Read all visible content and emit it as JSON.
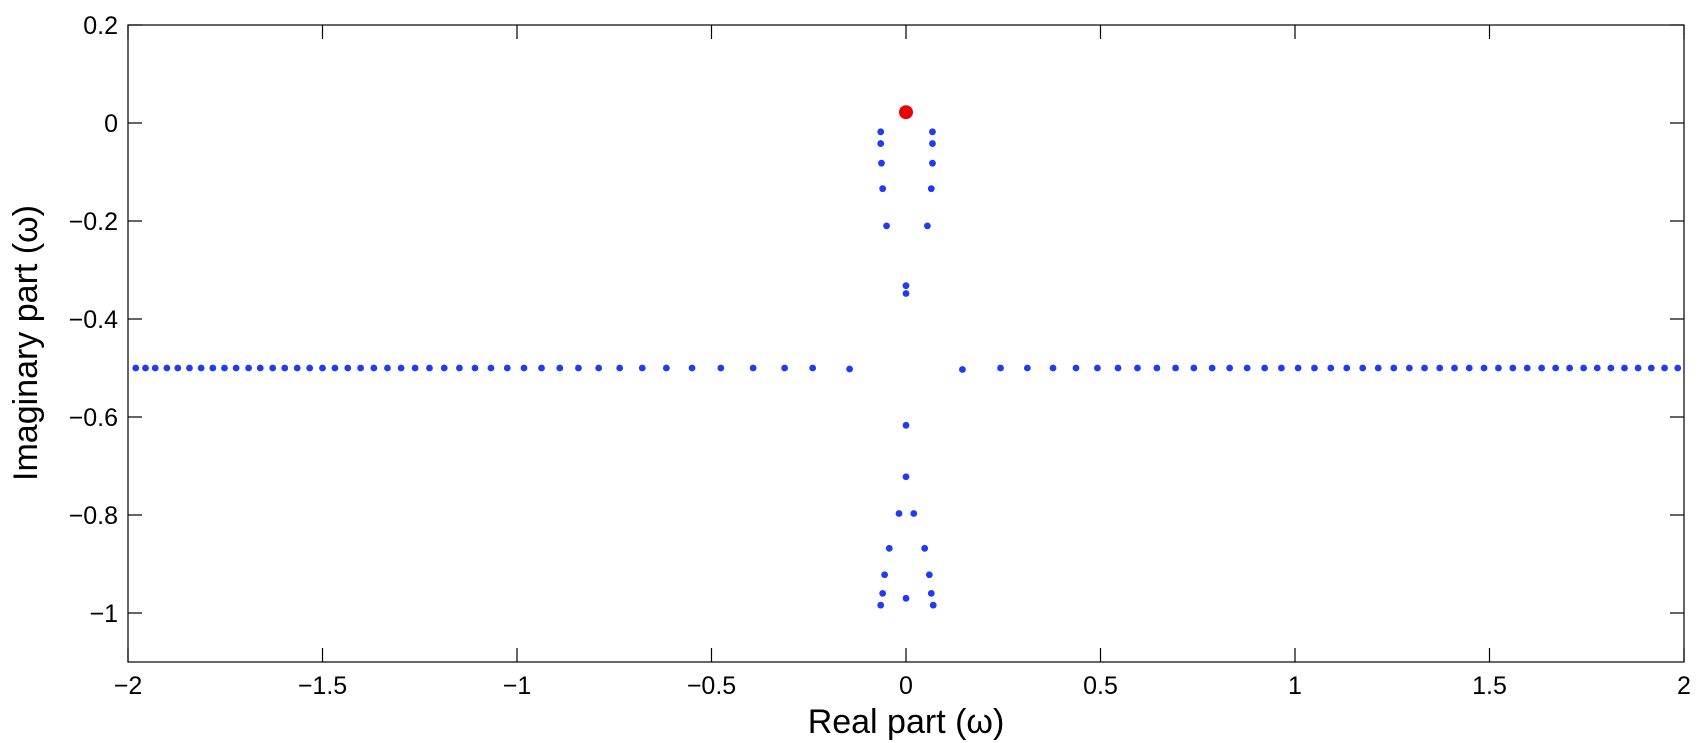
{
  "chart_data": {
    "type": "scatter",
    "xlabel": "Real  part (ω)",
    "ylabel": "Imaginary part (ω)",
    "xlim": [
      -2,
      2
    ],
    "ylim": [
      -1.1,
      0.2
    ],
    "xticks": [
      -2,
      -1.5,
      -1,
      -0.5,
      0,
      0.5,
      1,
      1.5,
      2
    ],
    "xtick_labels": [
      "−2",
      "−1.5",
      "−1",
      "−0.5",
      "0",
      "0.5",
      "1",
      "1.5",
      "2"
    ],
    "yticks": [
      0.2,
      0,
      -0.2,
      -0.4,
      -0.6,
      -0.8,
      -1
    ],
    "ytick_labels": [
      "0.2",
      "0",
      "−0.2",
      "−0.4",
      "−0.6",
      "−0.8",
      "−1"
    ],
    "grid": false,
    "series": [
      {
        "color": "#1f3cf0",
        "marker_size": "small",
        "points": [
          [
            -1.98,
            -0.5
          ],
          [
            -1.955,
            -0.5
          ],
          [
            -1.93,
            -0.5
          ],
          [
            -1.9,
            -0.5
          ],
          [
            -1.872,
            -0.5
          ],
          [
            -1.842,
            -0.5
          ],
          [
            -1.812,
            -0.5
          ],
          [
            -1.782,
            -0.5
          ],
          [
            -1.752,
            -0.5
          ],
          [
            -1.722,
            -0.5
          ],
          [
            -1.69,
            -0.5
          ],
          [
            -1.66,
            -0.5
          ],
          [
            -1.628,
            -0.5
          ],
          [
            -1.597,
            -0.5
          ],
          [
            -1.565,
            -0.5
          ],
          [
            -1.533,
            -0.5
          ],
          [
            -1.5,
            -0.5
          ],
          [
            -1.468,
            -0.5
          ],
          [
            -1.435,
            -0.5
          ],
          [
            -1.402,
            -0.5
          ],
          [
            -1.368,
            -0.5
          ],
          [
            -1.333,
            -0.5
          ],
          [
            -1.298,
            -0.5
          ],
          [
            -1.262,
            -0.5
          ],
          [
            -1.225,
            -0.5
          ],
          [
            -1.187,
            -0.5
          ],
          [
            -1.148,
            -0.5
          ],
          [
            -1.108,
            -0.5
          ],
          [
            -1.067,
            -0.5
          ],
          [
            -1.025,
            -0.5
          ],
          [
            -0.982,
            -0.5
          ],
          [
            -0.937,
            -0.5
          ],
          [
            -0.89,
            -0.5
          ],
          [
            -0.842,
            -0.5
          ],
          [
            -0.79,
            -0.5
          ],
          [
            -0.736,
            -0.5
          ],
          [
            -0.678,
            -0.5
          ],
          [
            -0.616,
            -0.5
          ],
          [
            -0.55,
            -0.5
          ],
          [
            -0.476,
            -0.5
          ],
          [
            -0.393,
            -0.5
          ],
          [
            -0.312,
            -0.5
          ],
          [
            -0.24,
            -0.5
          ],
          [
            -0.145,
            -0.502
          ],
          [
            0.145,
            -0.503
          ],
          [
            0.243,
            -0.5
          ],
          [
            0.312,
            -0.5
          ],
          [
            0.378,
            -0.5
          ],
          [
            0.437,
            -0.5
          ],
          [
            0.492,
            -0.5
          ],
          [
            0.545,
            -0.5
          ],
          [
            0.595,
            -0.5
          ],
          [
            0.645,
            -0.5
          ],
          [
            0.693,
            -0.5
          ],
          [
            0.74,
            -0.5
          ],
          [
            0.787,
            -0.5
          ],
          [
            0.832,
            -0.5
          ],
          [
            0.877,
            -0.5
          ],
          [
            0.922,
            -0.5
          ],
          [
            0.965,
            -0.5
          ],
          [
            1.008,
            -0.5
          ],
          [
            1.05,
            -0.5
          ],
          [
            1.092,
            -0.5
          ],
          [
            1.133,
            -0.5
          ],
          [
            1.174,
            -0.5
          ],
          [
            1.214,
            -0.5
          ],
          [
            1.254,
            -0.5
          ],
          [
            1.294,
            -0.5
          ],
          [
            1.333,
            -0.5
          ],
          [
            1.372,
            -0.5
          ],
          [
            1.41,
            -0.5
          ],
          [
            1.448,
            -0.5
          ],
          [
            1.486,
            -0.5
          ],
          [
            1.523,
            -0.5
          ],
          [
            1.56,
            -0.5
          ],
          [
            1.597,
            -0.5
          ],
          [
            1.634,
            -0.5
          ],
          [
            1.67,
            -0.5
          ],
          [
            1.706,
            -0.5
          ],
          [
            1.742,
            -0.5
          ],
          [
            1.777,
            -0.5
          ],
          [
            1.812,
            -0.5
          ],
          [
            1.847,
            -0.5
          ],
          [
            1.882,
            -0.5
          ],
          [
            1.916,
            -0.5
          ],
          [
            1.95,
            -0.5
          ],
          [
            1.984,
            -0.5
          ],
          [
            -0.065,
            -0.018
          ],
          [
            -0.065,
            -0.042
          ],
          [
            -0.063,
            -0.082
          ],
          [
            -0.06,
            -0.134
          ],
          [
            -0.05,
            -0.21
          ],
          [
            0.068,
            -0.018
          ],
          [
            0.068,
            -0.042
          ],
          [
            0.068,
            -0.082
          ],
          [
            0.065,
            -0.134
          ],
          [
            0.055,
            -0.21
          ],
          [
            0.0,
            -0.332
          ],
          [
            0.0,
            -0.348
          ],
          [
            0.0,
            -0.617
          ],
          [
            0.0,
            -0.722
          ],
          [
            -0.018,
            -0.797
          ],
          [
            0.02,
            -0.797
          ],
          [
            -0.043,
            -0.868
          ],
          [
            0.048,
            -0.868
          ],
          [
            -0.055,
            -0.922
          ],
          [
            0.06,
            -0.922
          ],
          [
            -0.06,
            -0.96
          ],
          [
            0.065,
            -0.96
          ],
          [
            -0.065,
            -0.984
          ],
          [
            0.07,
            -0.984
          ],
          [
            0.0,
            -0.97
          ]
        ]
      },
      {
        "color": "#e8000b",
        "marker_size": "large",
        "points": [
          [
            0.0,
            0.022
          ]
        ]
      }
    ]
  }
}
